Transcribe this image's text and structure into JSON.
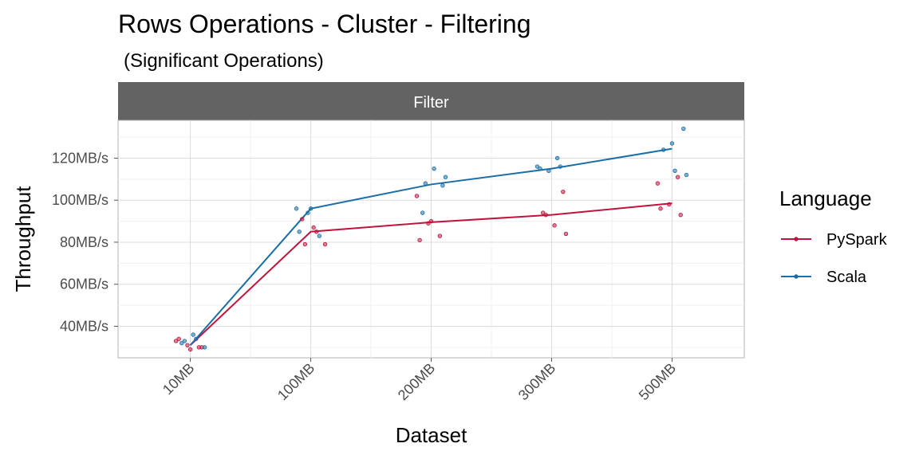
{
  "chart_data": {
    "type": "line",
    "title": "Rows Operations - Cluster - Filtering",
    "subtitle": "(Significant Operations)",
    "facet": "Filter",
    "xlabel": "Dataset",
    "ylabel": "Throughput",
    "categories": [
      "10MB",
      "100MB",
      "200MB",
      "300MB",
      "500MB"
    ],
    "ylim": [
      25,
      138
    ],
    "yticks": [
      40,
      60,
      80,
      100,
      120
    ],
    "ytick_labels": [
      "40MB/s",
      "60MB/s",
      "80MB/s",
      "100MB/s",
      "120MB/s"
    ],
    "legend_title": "Language",
    "series": [
      {
        "name": "PySpark",
        "color": "#c0143c",
        "values": [
          31,
          85,
          89.5,
          93,
          98.5
        ],
        "points": [
          [
            0,
            33
          ],
          [
            0,
            31
          ],
          [
            0,
            30
          ],
          [
            0,
            34
          ],
          [
            0,
            29
          ],
          [
            0,
            30
          ],
          [
            1,
            91
          ],
          [
            1,
            87
          ],
          [
            1,
            79
          ],
          [
            1,
            79
          ],
          [
            1,
            85
          ],
          [
            2,
            102
          ],
          [
            2,
            89
          ],
          [
            2,
            83
          ],
          [
            2,
            81
          ],
          [
            2,
            90
          ],
          [
            3,
            104
          ],
          [
            3,
            94
          ],
          [
            3,
            88
          ],
          [
            3,
            84
          ],
          [
            3,
            93
          ],
          [
            4,
            111
          ],
          [
            4,
            108
          ],
          [
            4,
            98
          ],
          [
            4,
            93
          ],
          [
            4,
            96
          ]
        ]
      },
      {
        "name": "Scala",
        "color": "#1a6fa6",
        "values": [
          31,
          96,
          107.5,
          115,
          124.5
        ],
        "points": [
          [
            0,
            32
          ],
          [
            0,
            36
          ],
          [
            0,
            30
          ],
          [
            0,
            33
          ],
          [
            0,
            34
          ],
          [
            1,
            96
          ],
          [
            1,
            94
          ],
          [
            1,
            83
          ],
          [
            1,
            85
          ],
          [
            1,
            96
          ],
          [
            2,
            107
          ],
          [
            2,
            94
          ],
          [
            2,
            115
          ],
          [
            2,
            111
          ],
          [
            2,
            108
          ],
          [
            3,
            120
          ],
          [
            3,
            116
          ],
          [
            3,
            114
          ],
          [
            3,
            116
          ],
          [
            3,
            115
          ],
          [
            4,
            127
          ],
          [
            4,
            134
          ],
          [
            4,
            124
          ],
          [
            4,
            114
          ],
          [
            4,
            112
          ]
        ]
      }
    ]
  }
}
